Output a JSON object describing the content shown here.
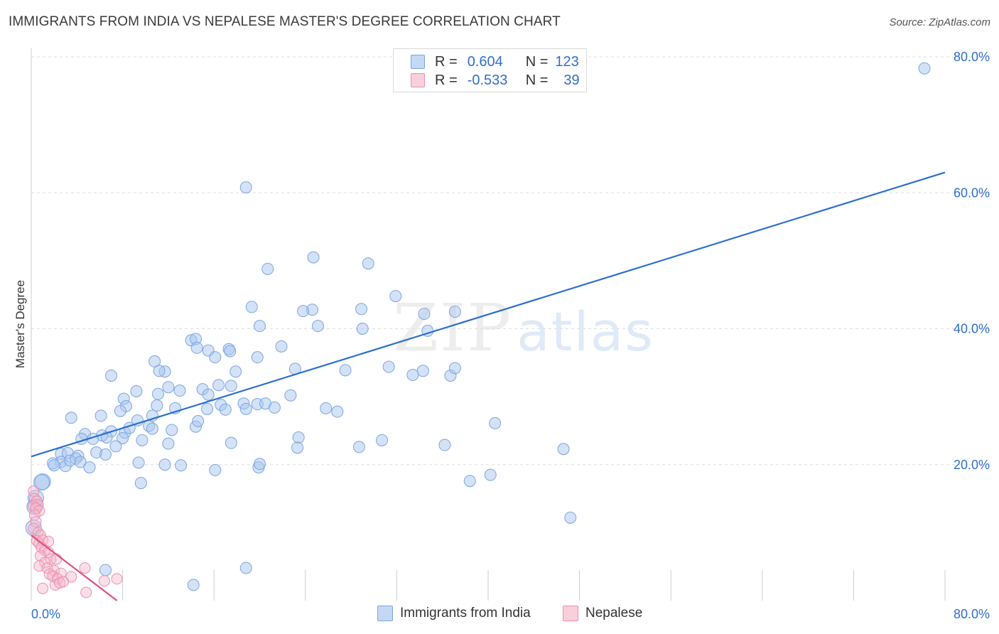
{
  "title": "IMMIGRANTS FROM INDIA VS NEPALESE MASTER'S DEGREE CORRELATION CHART",
  "source": "Source: ZipAtlas.com",
  "watermark": {
    "zip": "ZIP",
    "atlas": "atlas"
  },
  "colors": {
    "blue_fill": "#a9c6ef",
    "blue_stroke": "#7aa6e0",
    "blue_line": "#2b6fd0",
    "pink_fill": "#f5b8cb",
    "pink_stroke": "#ec8fad",
    "pink_line": "#e0507e",
    "grid": "#dddddd",
    "tick_text": "#2f6fd0"
  },
  "legend": {
    "rows": [
      {
        "r_label": "R =",
        "r_value": "0.604",
        "n_label": "N =",
        "n_value": "123",
        "color": "#a9c6ef",
        "stroke": "#7aa6e0"
      },
      {
        "r_label": "R =",
        "r_value": "-0.533",
        "n_label": "N =",
        "n_value": "39",
        "color": "#f5b8cb",
        "stroke": "#ec8fad"
      }
    ]
  },
  "bottom_legend": [
    {
      "label": "Immigrants from India",
      "color": "#a9c6ef",
      "stroke": "#7aa6e0"
    },
    {
      "label": "Nepalese",
      "color": "#f5b8cb",
      "stroke": "#ec8fad"
    }
  ],
  "chart_data": {
    "type": "scatter",
    "title": "IMMIGRANTS FROM INDIA VS NEPALESE MASTER'S DEGREE CORRELATION CHART",
    "xlabel": "",
    "ylabel": "Master's Degree",
    "xlim": [
      0,
      80
    ],
    "ylim": [
      0,
      80
    ],
    "x_tick_labels": [
      "0.0%",
      "80.0%"
    ],
    "y_tick_labels": [
      {
        "value": 20,
        "label": "20.0%"
      },
      {
        "value": 40,
        "label": "40.0%"
      },
      {
        "value": 60,
        "label": "60.0%"
      },
      {
        "value": 80,
        "label": "80.0%"
      }
    ],
    "series": [
      {
        "name": "Immigrants from India",
        "color": "#a9c6ef",
        "trend": {
          "x": [
            0,
            80
          ],
          "y": [
            21.2,
            63.0
          ]
        },
        "points": [
          [
            78.2,
            78.3
          ],
          [
            18.8,
            60.8
          ],
          [
            24.7,
            50.5
          ],
          [
            29.5,
            49.6
          ],
          [
            20.7,
            48.8
          ],
          [
            31.9,
            44.8
          ],
          [
            24.6,
            42.8
          ],
          [
            37.1,
            42.5
          ],
          [
            34.4,
            42.2
          ],
          [
            23.8,
            42.6
          ],
          [
            28.9,
            42.9
          ],
          [
            19.3,
            43.2
          ],
          [
            25.1,
            40.4
          ],
          [
            29.0,
            40.0
          ],
          [
            34.7,
            39.7
          ],
          [
            20.0,
            40.4
          ],
          [
            14.0,
            38.3
          ],
          [
            14.4,
            38.5
          ],
          [
            14.5,
            37.2
          ],
          [
            21.9,
            37.4
          ],
          [
            15.5,
            36.8
          ],
          [
            17.3,
            37.0
          ],
          [
            16.1,
            35.8
          ],
          [
            17.4,
            36.7
          ],
          [
            19.8,
            35.8
          ],
          [
            10.8,
            35.2
          ],
          [
            7.0,
            33.1
          ],
          [
            11.7,
            33.7
          ],
          [
            11.2,
            33.8
          ],
          [
            17.9,
            33.7
          ],
          [
            23.1,
            34.1
          ],
          [
            27.5,
            33.9
          ],
          [
            31.3,
            34.4
          ],
          [
            34.3,
            33.8
          ],
          [
            36.7,
            33.1
          ],
          [
            37.1,
            34.2
          ],
          [
            33.4,
            33.2
          ],
          [
            12.0,
            31.4
          ],
          [
            15.0,
            31.1
          ],
          [
            16.4,
            31.7
          ],
          [
            17.5,
            31.6
          ],
          [
            13.0,
            30.9
          ],
          [
            8.1,
            29.7
          ],
          [
            9.2,
            30.8
          ],
          [
            11.1,
            30.4
          ],
          [
            15.5,
            30.3
          ],
          [
            18.6,
            29.0
          ],
          [
            19.8,
            28.9
          ],
          [
            20.5,
            29.0
          ],
          [
            22.7,
            30.2
          ],
          [
            8.3,
            28.6
          ],
          [
            11.0,
            28.7
          ],
          [
            12.6,
            28.3
          ],
          [
            15.4,
            28.2
          ],
          [
            16.6,
            28.8
          ],
          [
            17.0,
            28.1
          ],
          [
            18.8,
            28.2
          ],
          [
            21.3,
            28.4
          ],
          [
            25.8,
            28.3
          ],
          [
            26.8,
            27.8
          ],
          [
            3.5,
            26.9
          ],
          [
            6.1,
            27.2
          ],
          [
            7.8,
            27.9
          ],
          [
            10.6,
            27.2
          ],
          [
            4.7,
            24.5
          ],
          [
            6.2,
            24.3
          ],
          [
            7.0,
            24.9
          ],
          [
            8.2,
            24.7
          ],
          [
            8.6,
            25.4
          ],
          [
            9.3,
            26.5
          ],
          [
            10.3,
            25.7
          ],
          [
            10.6,
            25.3
          ],
          [
            12.3,
            25.1
          ],
          [
            14.4,
            25.6
          ],
          [
            14.6,
            26.4
          ],
          [
            4.4,
            23.8
          ],
          [
            5.4,
            23.8
          ],
          [
            6.6,
            24.0
          ],
          [
            8.0,
            23.9
          ],
          [
            9.7,
            23.6
          ],
          [
            12.0,
            23.1
          ],
          [
            17.5,
            23.2
          ],
          [
            23.4,
            24.0
          ],
          [
            28.7,
            22.6
          ],
          [
            7.4,
            22.7
          ],
          [
            2.6,
            21.6
          ],
          [
            3.2,
            21.7
          ],
          [
            4.1,
            21.3
          ],
          [
            5.7,
            21.8
          ],
          [
            6.5,
            21.5
          ],
          [
            2.6,
            20.4
          ],
          [
            3.0,
            19.8
          ],
          [
            1.9,
            20.2
          ],
          [
            2.0,
            19.9
          ],
          [
            3.4,
            20.6
          ],
          [
            3.9,
            20.9
          ],
          [
            4.3,
            20.4
          ],
          [
            5.1,
            19.6
          ],
          [
            9.4,
            20.3
          ],
          [
            11.7,
            20.0
          ],
          [
            13.1,
            19.9
          ],
          [
            16.1,
            19.2
          ],
          [
            19.9,
            19.6
          ],
          [
            20.0,
            20.1
          ],
          [
            23.3,
            22.5
          ],
          [
            40.6,
            26.1
          ],
          [
            36.2,
            22.9
          ],
          [
            30.7,
            23.6
          ],
          [
            40.2,
            18.5
          ],
          [
            38.4,
            17.6
          ],
          [
            1.0,
            17.5
          ],
          [
            0.9,
            17.4
          ],
          [
            0.4,
            15.1
          ],
          [
            0.3,
            13.8
          ],
          [
            0.2,
            10.7
          ],
          [
            9.6,
            17.3
          ],
          [
            46.6,
            22.3
          ],
          [
            47.2,
            12.2
          ],
          [
            6.5,
            4.5
          ],
          [
            14.2,
            2.3
          ],
          [
            18.8,
            4.8
          ]
        ]
      },
      {
        "name": "Nepalese",
        "color": "#f5b8cb",
        "trend": {
          "x": [
            0,
            7.5
          ],
          "y": [
            9.6,
            0
          ]
        },
        "points": [
          [
            0.2,
            16.1
          ],
          [
            0.3,
            15.0
          ],
          [
            0.5,
            14.6
          ],
          [
            0.6,
            14.1
          ],
          [
            0.2,
            13.9
          ],
          [
            0.4,
            13.6
          ],
          [
            0.7,
            13.2
          ],
          [
            0.3,
            12.6
          ],
          [
            0.4,
            11.6
          ],
          [
            0.2,
            10.6
          ],
          [
            0.6,
            10.0
          ],
          [
            0.8,
            9.6
          ],
          [
            0.5,
            8.8
          ],
          [
            0.7,
            8.4
          ],
          [
            1.0,
            8.9
          ],
          [
            1.5,
            8.7
          ],
          [
            0.9,
            7.8
          ],
          [
            1.2,
            7.4
          ],
          [
            1.5,
            7.1
          ],
          [
            0.8,
            6.6
          ],
          [
            1.7,
            6.1
          ],
          [
            2.2,
            6.1
          ],
          [
            1.2,
            5.6
          ],
          [
            0.7,
            5.1
          ],
          [
            1.4,
            4.8
          ],
          [
            2.0,
            4.4
          ],
          [
            1.6,
            3.9
          ],
          [
            2.6,
            4.0
          ],
          [
            1.9,
            3.6
          ],
          [
            2.3,
            3.2
          ],
          [
            3.5,
            3.5
          ],
          [
            4.7,
            4.8
          ],
          [
            2.1,
            2.3
          ],
          [
            2.5,
            2.6
          ],
          [
            2.8,
            2.8
          ],
          [
            4.8,
            1.2
          ],
          [
            6.4,
            2.9
          ],
          [
            7.5,
            3.2
          ],
          [
            1.0,
            1.8
          ]
        ]
      }
    ]
  }
}
